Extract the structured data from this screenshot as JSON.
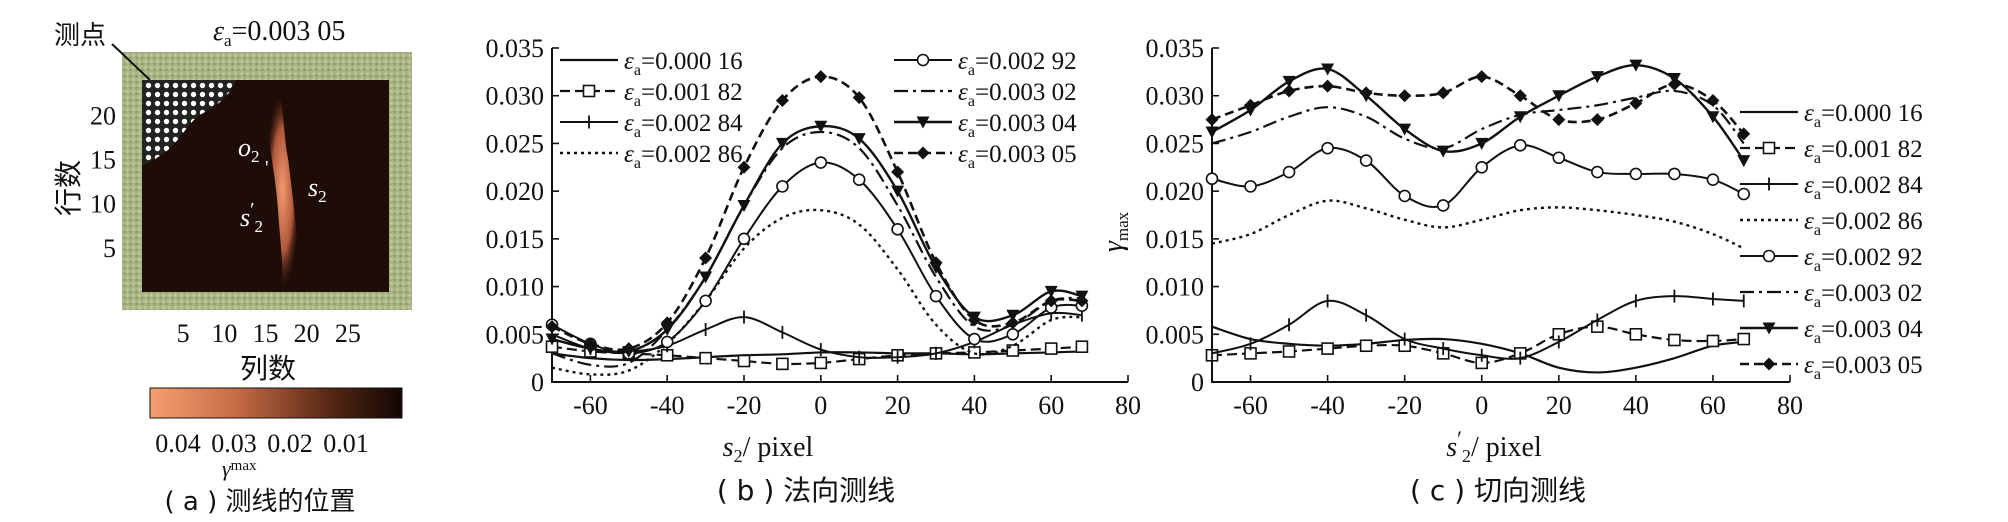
{
  "chart_data": [
    {
      "type": "heatmap",
      "panel_caption": "( a ) 测线的位置",
      "title": "ε_a=0.003 05",
      "title_prefix": "ε",
      "title_sub": "a",
      "title_value": "=0.003 05",
      "xlabel": "列数",
      "ylabel": "行数",
      "x_ticks": [
        "5",
        "10",
        "15",
        "20",
        "25"
      ],
      "y_ticks": [
        "5",
        "10",
        "15",
        "20"
      ],
      "xlim": [
        0,
        30
      ],
      "ylim": [
        0,
        24
      ],
      "annotations": {
        "measure_point": "测点",
        "o2": "o",
        "o2_sub": "2",
        "s2": "s",
        "s2_sub": "2",
        "s2p": "s",
        "s2p_sub": "2",
        "s2p_prime": "′"
      },
      "colorbar": {
        "label": "γ",
        "label_sub": "max",
        "ticks": [
          "0.04",
          "0.03",
          "0.02",
          "0.01"
        ],
        "range": [
          0.045,
          0.0
        ]
      }
    },
    {
      "type": "line",
      "panel_caption": "( b ) 法向测线",
      "xlabel_main": "s",
      "xlabel_sub": "2",
      "xlabel_unit": "/ pixel",
      "xlim": [
        -70,
        80
      ],
      "ylim": [
        0,
        0.035
      ],
      "x_ticks": [
        "-60",
        "-40",
        "-20",
        "0",
        "20",
        "40",
        "60",
        "80"
      ],
      "y_ticks": [
        "0",
        "0.005",
        "0.010",
        "0.015",
        "0.020",
        "0.025",
        "0.030",
        "0.035"
      ],
      "legend_position": "top",
      "x": [
        -70,
        -60,
        -50,
        -40,
        -30,
        -20,
        -10,
        0,
        10,
        20,
        30,
        40,
        50,
        60,
        68
      ],
      "series": [
        {
          "name": "ε_a=0.000 16",
          "legend_value": "=0.000 16",
          "marker": "none",
          "values": [
            0.003,
            0.0025,
            0.0023,
            0.0024,
            0.0026,
            0.0028,
            0.0029,
            0.0031,
            0.0031,
            0.003,
            0.003,
            0.0029,
            0.003,
            0.0031,
            0.0032
          ]
        },
        {
          "name": "ε_a=0.001 82",
          "legend_value": "=0.001 82",
          "marker": "square",
          "values": [
            0.0037,
            0.0032,
            0.003,
            0.0028,
            0.0025,
            0.0022,
            0.0019,
            0.002,
            0.0024,
            0.0028,
            0.003,
            0.0031,
            0.0033,
            0.0035,
            0.0037
          ]
        },
        {
          "name": "ε_a=0.002 84",
          "legend_value": "=0.002 84",
          "marker": "plus",
          "values": [
            0.005,
            0.0035,
            0.0032,
            0.0038,
            0.0055,
            0.0068,
            0.0052,
            0.0034,
            0.0026,
            0.0026,
            0.003,
            0.0042,
            0.006,
            0.0072,
            0.007
          ]
        },
        {
          "name": "ε_a=0.002 86",
          "legend_value": "=0.002 86",
          "marker": "none",
          "values": [
            0.0015,
            0.0008,
            0.0012,
            0.004,
            0.0085,
            0.014,
            0.0172,
            0.018,
            0.0165,
            0.0118,
            0.006,
            0.003,
            0.0038,
            0.0065,
            0.0068
          ]
        },
        {
          "name": "ε_a=0.002 92",
          "legend_value": "=0.002 92",
          "marker": "circle",
          "values": [
            0.006,
            0.004,
            0.003,
            0.0042,
            0.0085,
            0.015,
            0.0205,
            0.023,
            0.0212,
            0.016,
            0.009,
            0.0045,
            0.005,
            0.0078,
            0.008
          ]
        },
        {
          "name": "ε_a=0.003 02",
          "legend_value": "=0.003 02",
          "marker": "none",
          "values": [
            0.003,
            0.0018,
            0.002,
            0.0055,
            0.011,
            0.0185,
            0.0245,
            0.0262,
            0.0245,
            0.0185,
            0.011,
            0.0058,
            0.006,
            0.0085,
            0.0088
          ]
        },
        {
          "name": "ε_a=0.003 04",
          "legend_value": "=0.003 04",
          "marker": "triangle-down",
          "values": [
            0.0045,
            0.0035,
            0.0032,
            0.0055,
            0.011,
            0.0185,
            0.025,
            0.0268,
            0.0255,
            0.02,
            0.012,
            0.0068,
            0.007,
            0.0095,
            0.009
          ]
        },
        {
          "name": "ε_a=0.003 05",
          "legend_value": "=0.003 05",
          "marker": "diamond",
          "values": [
            0.0058,
            0.004,
            0.0035,
            0.0062,
            0.013,
            0.0225,
            0.0295,
            0.032,
            0.0298,
            0.022,
            0.0125,
            0.0065,
            0.0062,
            0.0085,
            0.0085
          ]
        }
      ]
    },
    {
      "type": "line",
      "panel_caption": "( c ) 切向测线",
      "xlabel_main": "s",
      "xlabel_sub": "2",
      "xlabel_prime": "′",
      "xlabel_unit": "/ pixel",
      "ylabel_main": "γ",
      "ylabel_sub": "max",
      "xlim": [
        -70,
        80
      ],
      "ylim": [
        0,
        0.035
      ],
      "x_ticks": [
        "-60",
        "-40",
        "-20",
        "0",
        "20",
        "40",
        "60",
        "80"
      ],
      "y_ticks": [
        "0",
        "0.005",
        "0.010",
        "0.015",
        "0.020",
        "0.025",
        "0.030",
        "0.035"
      ],
      "legend_position": "right",
      "x": [
        -70,
        -60,
        -50,
        -40,
        -30,
        -20,
        -10,
        0,
        10,
        20,
        30,
        40,
        50,
        60,
        68
      ],
      "series": [
        {
          "name": "ε_a=0.000 16",
          "legend_value": "=0.000 16",
          "marker": "none",
          "values": [
            0.0058,
            0.0045,
            0.004,
            0.0038,
            0.004,
            0.0044,
            0.0045,
            0.004,
            0.003,
            0.0015,
            0.001,
            0.0015,
            0.0025,
            0.0038,
            0.0042
          ]
        },
        {
          "name": "ε_a=0.001 82",
          "legend_value": "=0.001 82",
          "marker": "square",
          "values": [
            0.0028,
            0.003,
            0.0032,
            0.0035,
            0.0038,
            0.0038,
            0.003,
            0.002,
            0.003,
            0.005,
            0.0058,
            0.005,
            0.0044,
            0.0043,
            0.0045
          ]
        },
        {
          "name": "ε_a=0.002 84",
          "legend_value": "=0.002 84",
          "marker": "plus",
          "values": [
            0.003,
            0.004,
            0.006,
            0.0085,
            0.007,
            0.0045,
            0.0035,
            0.0028,
            0.0025,
            0.0042,
            0.0065,
            0.0085,
            0.009,
            0.0087,
            0.0085
          ]
        },
        {
          "name": "ε_a=0.002 86",
          "legend_value": "=0.002 86",
          "marker": "none",
          "values": [
            0.0145,
            0.0155,
            0.0175,
            0.019,
            0.0182,
            0.017,
            0.0162,
            0.017,
            0.018,
            0.0183,
            0.018,
            0.0175,
            0.0168,
            0.0155,
            0.014
          ]
        },
        {
          "name": "ε_a=0.002 92",
          "legend_value": "=0.002 92",
          "marker": "circle",
          "values": [
            0.0213,
            0.0205,
            0.022,
            0.0245,
            0.0232,
            0.0195,
            0.0185,
            0.0225,
            0.0248,
            0.0235,
            0.022,
            0.0218,
            0.0218,
            0.0212,
            0.0197
          ]
        },
        {
          "name": "ε_a=0.003 02",
          "legend_value": "=0.003 02",
          "marker": "none",
          "values": [
            0.025,
            0.0262,
            0.0278,
            0.0288,
            0.0278,
            0.0255,
            0.0245,
            0.0265,
            0.028,
            0.0285,
            0.029,
            0.0298,
            0.0305,
            0.029,
            0.025
          ]
        },
        {
          "name": "ε_a=0.003 04",
          "legend_value": "=0.003 04",
          "marker": "triangle-down",
          "values": [
            0.0262,
            0.0285,
            0.0315,
            0.0328,
            0.03,
            0.0265,
            0.0242,
            0.025,
            0.0278,
            0.03,
            0.032,
            0.0332,
            0.0318,
            0.0278,
            0.0232
          ]
        },
        {
          "name": "ε_a=0.003 05",
          "legend_value": "=0.003 05",
          "marker": "diamond",
          "values": [
            0.0275,
            0.029,
            0.0305,
            0.031,
            0.0303,
            0.03,
            0.0303,
            0.032,
            0.03,
            0.0275,
            0.0275,
            0.0292,
            0.0312,
            0.0295,
            0.026
          ]
        }
      ]
    }
  ]
}
